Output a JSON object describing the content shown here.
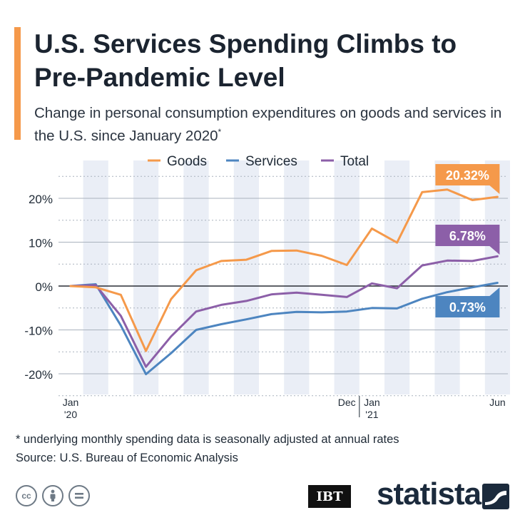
{
  "header": {
    "title": "U.S. Services Spending Climbs to Pre-Pandemic Level",
    "subtitle": "Change in personal consumption expenditures on goods and services in the U.S. since January 2020",
    "subtitle_marker": "*"
  },
  "chart_data": {
    "type": "line",
    "categories": [
      "Jan 2020",
      "Feb 2020",
      "Mar 2020",
      "Apr 2020",
      "May 2020",
      "Jun 2020",
      "Jul 2020",
      "Aug 2020",
      "Sep 2020",
      "Oct 2020",
      "Nov 2020",
      "Dec 2020",
      "Jan 2021",
      "Feb 2021",
      "Mar 2021",
      "Apr 2021",
      "May 2021",
      "Jun 2021"
    ],
    "x_tick_labels": [
      {
        "index": 0,
        "lines": [
          "Jan",
          "'20"
        ]
      },
      {
        "index": 11,
        "lines": [
          "Dec",
          ""
        ]
      },
      {
        "index": 12,
        "lines": [
          "Jan",
          "'21"
        ]
      },
      {
        "index": 17,
        "lines": [
          "Jun",
          ""
        ]
      }
    ],
    "y_ticks": [
      20,
      10,
      0,
      -10,
      -20
    ],
    "y_tick_labels": [
      "20%",
      "10%",
      "0%",
      "-10%",
      "-20%"
    ],
    "ylim": [
      -25,
      25
    ],
    "series": [
      {
        "name": "Goods",
        "color": "#f5994a",
        "values": [
          0,
          -0.3,
          -2.0,
          -14.8,
          -3.0,
          3.6,
          5.7,
          6.0,
          8.0,
          8.1,
          6.9,
          4.8,
          13.1,
          9.9,
          21.4,
          22.0,
          19.6,
          20.32
        ],
        "end_label": "20.32%"
      },
      {
        "name": "Services",
        "color": "#4d85c0",
        "values": [
          0,
          0.4,
          -9.0,
          -20.1,
          -15.3,
          -10.0,
          -8.7,
          -7.6,
          -6.4,
          -5.9,
          -6.0,
          -5.8,
          -5.0,
          -5.1,
          -2.9,
          -1.4,
          -0.3,
          0.73
        ],
        "end_label": "0.73%"
      },
      {
        "name": "Total",
        "color": "#8c5fa8",
        "values": [
          0,
          0.2,
          -6.8,
          -18.4,
          -11.5,
          -5.8,
          -4.3,
          -3.4,
          -1.9,
          -1.5,
          -2.0,
          -2.5,
          0.6,
          -0.5,
          4.7,
          5.8,
          5.7,
          6.78
        ],
        "end_label": "6.78%"
      }
    ]
  },
  "footer": {
    "footnote": "* underlying monthly spending data is seasonally adjusted at annual rates",
    "source": "Source: U.S. Bureau of Economic Analysis",
    "license_icons": [
      "cc",
      "by",
      "nd"
    ],
    "partner_logo": "IBT",
    "brand": "statista"
  }
}
